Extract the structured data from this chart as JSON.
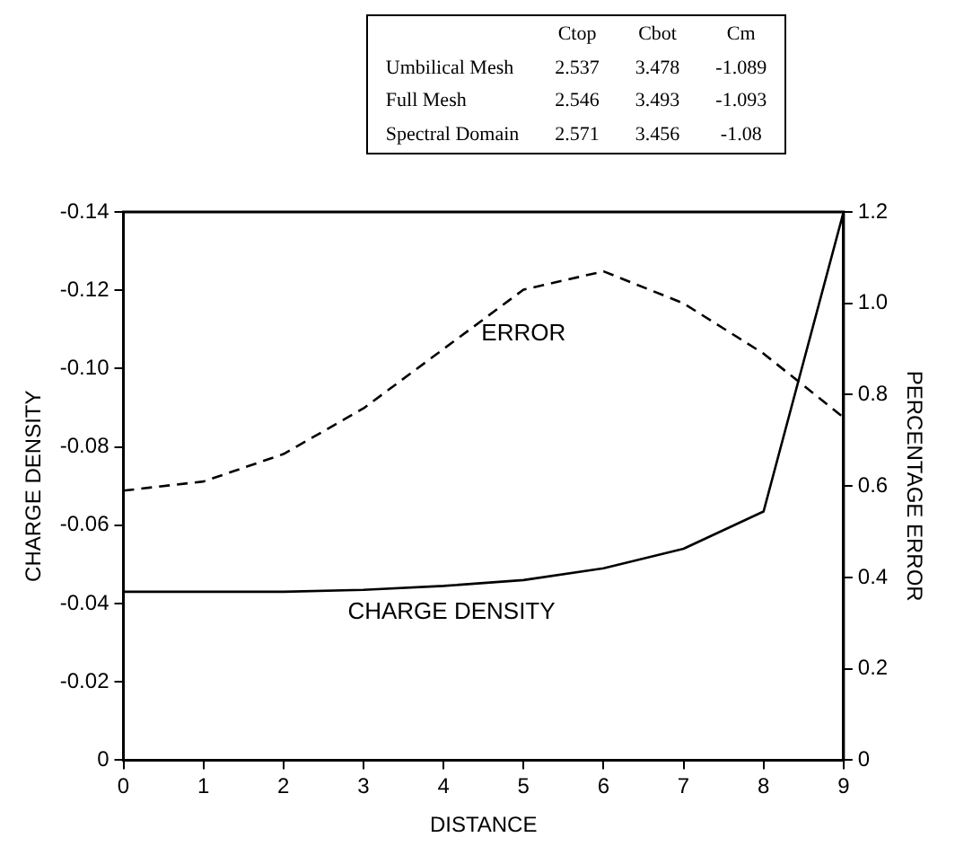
{
  "chart_data": {
    "type": "line",
    "xlabel": "DISTANCE",
    "ylabel": "CHARGE DENSITY",
    "y2label": "PERCENTAGE ERROR",
    "x": [
      0,
      1,
      2,
      3,
      4,
      5,
      6,
      7,
      8,
      9
    ],
    "series": [
      {
        "name": "CHARGE DENSITY",
        "color": "#000000",
        "line_style": "solid",
        "values": [
          -0.043,
          -0.043,
          -0.043,
          -0.0435,
          -0.0445,
          -0.046,
          -0.049,
          -0.054,
          -0.0635,
          -0.14
        ]
      },
      {
        "name": "ERROR",
        "color": "#000000",
        "line_style": "dashed",
        "axis": "y2",
        "values": [
          0.59,
          0.61,
          0.67,
          0.77,
          0.9,
          1.03,
          1.07,
          1.0,
          0.89,
          0.75
        ]
      }
    ],
    "xlim": [
      0,
      9
    ],
    "xticks": [
      0,
      1,
      2,
      3,
      4,
      5,
      6,
      7,
      8,
      9
    ],
    "ylim": [
      0,
      -0.14
    ],
    "yticks": [
      0,
      -0.02,
      -0.04,
      -0.06,
      -0.08,
      {
        "value": -0.1,
        "label": "-0.10"
      },
      -0.12,
      -0.14
    ],
    "y2lim": [
      0,
      1.2
    ],
    "y2ticks": [
      0,
      0.2,
      0.4,
      0.6,
      0.8,
      {
        "value": 1,
        "label": "1.0"
      },
      1.2
    ],
    "legend": false,
    "annotations": [
      "Ctop",
      "Cbot",
      "Cm",
      "Umbilical Mesh",
      "2.537",
      "3.478",
      "-1.089",
      "Full Mesh",
      "2.546",
      "3.493",
      "-1.093",
      "Spectral Domain",
      "2.571",
      "3.456",
      "-1.08"
    ]
  }
}
